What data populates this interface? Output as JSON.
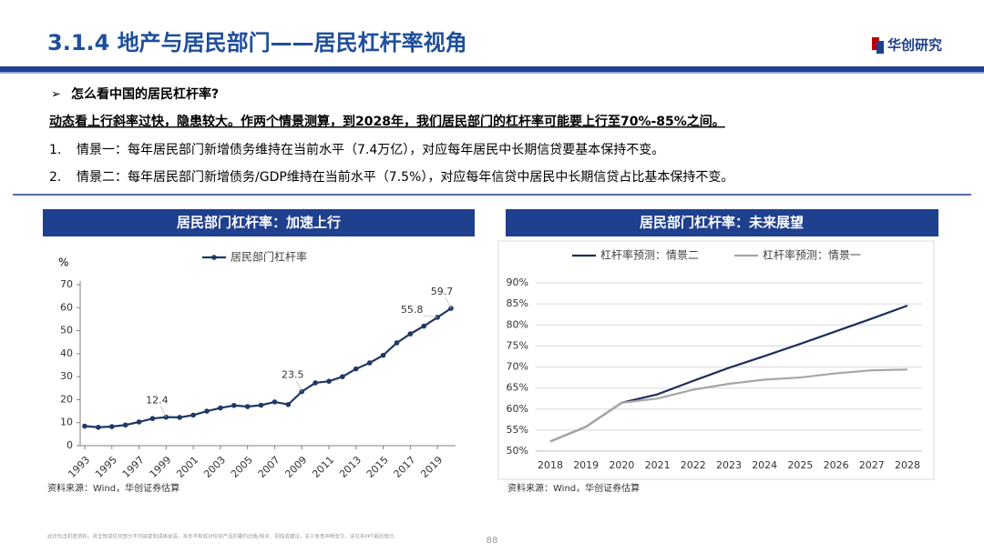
{
  "header": {
    "title": "3.1.4 地产与居民部门——居民杠杆率视角",
    "logo": "华创研究"
  },
  "text": {
    "bullet": "怎么看中国的居民杠杆率?",
    "lead": "动态看上行斜率过快，隐患较大。作两个情景测算，到2028年，我们居民部门的杠杆率可能要上行至70%-85%之间。",
    "items": [
      {
        "num": "1.",
        "text": "情景一：每年居民部门新增债务维持在当前水平（7.4万亿），对应每年居民中长期信贷要基本保持不变。"
      },
      {
        "num": "2.",
        "text": "情景二：每年居民部门新增债务/GDP维持在当前水平（7.5%），对应每年信贷中居民中长期信贷占比基本保持不变。"
      }
    ]
  },
  "chart_data": [
    {
      "type": "line",
      "title": "居民部门杠杆率：加速上行",
      "y_label": "%",
      "x": [
        1993,
        1994,
        1995,
        1996,
        1997,
        1998,
        1999,
        2000,
        2001,
        2002,
        2003,
        2004,
        2005,
        2006,
        2007,
        2008,
        2009,
        2010,
        2011,
        2012,
        2013,
        2014,
        2015,
        2016,
        2017,
        2018,
        2019,
        2020
      ],
      "series": [
        {
          "name": "居民部门杠杆率",
          "color": "#1f3864",
          "values": [
            8.5,
            8.0,
            8.3,
            9.0,
            10.3,
            11.8,
            12.4,
            12.3,
            13.3,
            15.0,
            16.4,
            17.5,
            17.0,
            17.6,
            19.0,
            17.9,
            23.5,
            27.3,
            28.0,
            30.0,
            33.4,
            36.0,
            39.3,
            44.7,
            48.6,
            52.0,
            55.8,
            59.7
          ],
          "value_labels": [
            null,
            null,
            null,
            null,
            null,
            null,
            "12.4",
            null,
            null,
            null,
            null,
            null,
            null,
            null,
            null,
            null,
            "23.5",
            null,
            null,
            null,
            null,
            null,
            null,
            null,
            null,
            null,
            "55.8",
            "59.7"
          ]
        }
      ],
      "xlim": [
        1993,
        2020
      ],
      "xticks": [
        1993,
        1995,
        1997,
        1999,
        2001,
        2003,
        2005,
        2007,
        2009,
        2011,
        2013,
        2015,
        2017,
        2019
      ],
      "ylim": [
        0,
        70
      ],
      "yticks": [
        0,
        10,
        20,
        30,
        40,
        50,
        60,
        70
      ],
      "grid": false,
      "markers": true,
      "source": "资料来源：Wind，华创证券估算"
    },
    {
      "type": "line",
      "title": "居民部门杠杆率：未来展望",
      "x": [
        2018,
        2019,
        2020,
        2021,
        2022,
        2023,
        2024,
        2025,
        2026,
        2027,
        2028
      ],
      "series": [
        {
          "name": "杠杆率预测：情景二",
          "color": "#1f2d5c",
          "values": [
            52.3,
            55.8,
            61.5,
            63.5,
            66.7,
            69.8,
            72.6,
            75.5,
            78.5,
            81.5,
            84.6
          ]
        },
        {
          "name": "杠杆率预测：情景一",
          "color": "#a6a6a6",
          "values": [
            52.3,
            55.8,
            61.5,
            62.5,
            64.6,
            66.0,
            67.0,
            67.5,
            68.5,
            69.2,
            69.4
          ]
        }
      ],
      "xlim": [
        2018,
        2028
      ],
      "xticks": [
        2018,
        2019,
        2020,
        2021,
        2022,
        2023,
        2024,
        2025,
        2026,
        2027,
        2028
      ],
      "ylim": [
        50,
        90
      ],
      "yticks": [
        {
          "value": 50,
          "label": "50%"
        },
        {
          "value": 55,
          "label": "55%"
        },
        {
          "value": 60,
          "label": "60%"
        },
        {
          "value": 65,
          "label": "65%"
        },
        {
          "value": 70,
          "label": "70%"
        },
        {
          "value": 75,
          "label": "75%"
        },
        {
          "value": 80,
          "label": "80%"
        },
        {
          "value": 85,
          "label": "85%"
        },
        {
          "value": 90,
          "label": "90%"
        }
      ],
      "grid": true,
      "markers": false,
      "source": "资料来源：Wind，华创证券估算"
    }
  ],
  "footer": {
    "disclaimer": "此页包含机密资料，其全部或任何部分不可被复制或再发送。本页不构成对任何产品的要约出售/购买、招揽或建议。关于免责声明全文，详见本PPT最后部分。",
    "page": "88"
  }
}
